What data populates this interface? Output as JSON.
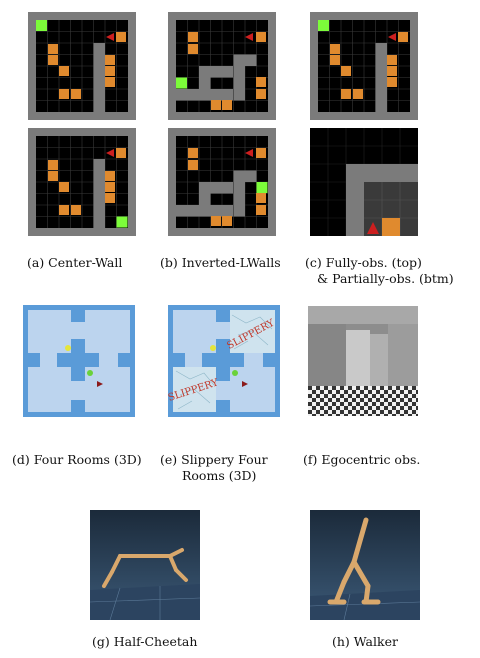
{
  "captions": {
    "a": "(a)  Center-Wall",
    "b": "(b)  Inverted-LWalls",
    "c1": "(c) Fully-obs. (top)",
    "c2": "& Partially-obs. (btm)",
    "d": "(d) Four Rooms (3D)",
    "e1": "(e) Slippery Four",
    "e2": "Rooms (3D)",
    "f": "(f) Egocentric obs.",
    "g": "(g) Half-Cheetah",
    "h": "(h) Walker"
  },
  "labels": {
    "slippery": "SLIPPERY"
  },
  "colors": {
    "grid_wall": "#7b7b7b",
    "grid_floor": "#000000",
    "goal": "#7cfc3a",
    "lava": "#e08a2e",
    "agent": "#cc1f1f",
    "room_floor": "#bcd4ee",
    "room_wall": "#5a9bd8"
  }
}
